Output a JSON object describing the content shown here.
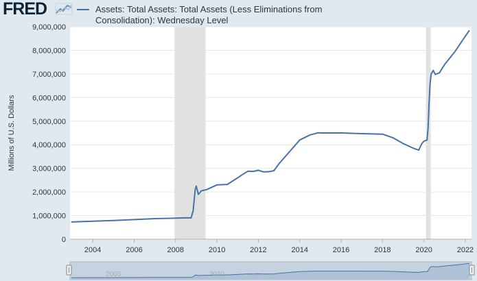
{
  "brand": {
    "logo_text": "FRED"
  },
  "chart_data": {
    "type": "line",
    "title": "",
    "ylabel": "Millions of U.S. Dollars",
    "xlabel": "",
    "ylim": [
      0,
      9000000
    ],
    "xlim": [
      2002.9,
      2022.3
    ],
    "grid": "horizontal",
    "legend_position": "top",
    "y_ticks": [
      0,
      1000000,
      2000000,
      3000000,
      4000000,
      5000000,
      6000000,
      7000000,
      8000000,
      9000000
    ],
    "y_tick_labels": [
      "0",
      "1,000,000",
      "2,000,000",
      "3,000,000",
      "4,000,000",
      "5,000,000",
      "6,000,000",
      "7,000,000",
      "8,000,000",
      "9,000,000"
    ],
    "x_ticks": [
      2004,
      2006,
      2008,
      2010,
      2012,
      2014,
      2016,
      2018,
      2020,
      2022
    ],
    "x_tick_labels": [
      "2004",
      "2006",
      "2008",
      "2010",
      "2012",
      "2014",
      "2016",
      "2018",
      "2020",
      "2022"
    ],
    "recessions": [
      [
        2007.95,
        2009.45
      ],
      [
        2020.1,
        2020.33
      ]
    ],
    "series": [
      {
        "name": "Assets: Total Assets: Total Assets (Less Eliminations from Consolidation): Wednesday Level",
        "color": "#4572a7",
        "x": [
          2002.96,
          2004,
          2005,
          2006,
          2007,
          2008,
          2008.6,
          2008.75,
          2008.85,
          2008.95,
          2009.0,
          2009.1,
          2009.25,
          2009.5,
          2009.75,
          2010,
          2010.5,
          2011,
          2011.25,
          2011.5,
          2011.75,
          2012,
          2012.25,
          2012.5,
          2012.75,
          2013,
          2013.5,
          2014,
          2014.5,
          2014.9,
          2015,
          2016,
          2017,
          2017.5,
          2018,
          2018.5,
          2019,
          2019.5,
          2019.75,
          2019.9,
          2020.0,
          2020.15,
          2020.2,
          2020.25,
          2020.3,
          2020.35,
          2020.45,
          2020.55,
          2020.75,
          2021,
          2021.5,
          2022,
          2022.2
        ],
        "y": [
          730000,
          760000,
          790000,
          830000,
          870000,
          890000,
          910000,
          900000,
          1200000,
          2100000,
          2250000,
          1900000,
          2050000,
          2100000,
          2200000,
          2300000,
          2320000,
          2600000,
          2750000,
          2880000,
          2870000,
          2920000,
          2850000,
          2860000,
          2900000,
          3200000,
          3700000,
          4200000,
          4420000,
          4510000,
          4500000,
          4500000,
          4470000,
          4460000,
          4450000,
          4300000,
          4050000,
          3850000,
          3770000,
          4050000,
          4150000,
          4200000,
          4700000,
          5800000,
          6600000,
          7000000,
          7150000,
          6980000,
          7050000,
          7400000,
          7950000,
          8600000,
          8850000
        ]
      }
    ]
  },
  "navigator": {
    "year_labels": [
      "2005",
      "2010"
    ]
  }
}
